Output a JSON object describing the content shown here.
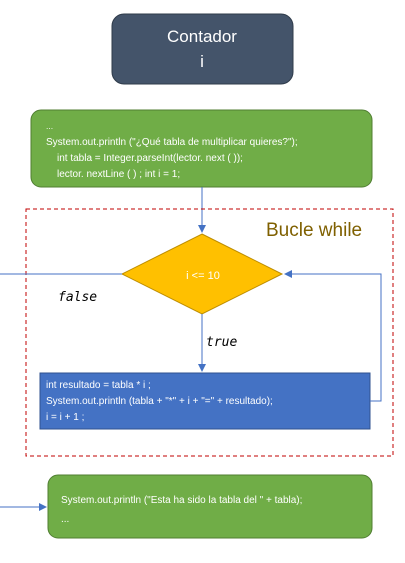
{
  "title_box": {
    "line1": "Contador",
    "line2": "i"
  },
  "init_box": {
    "lines": [
      "...",
      "System.out.println (\"¿Qué tabla de multiplicar quieres?\");",
      "int tabla = Integer.parseInt(lector.  next ( ));",
      "lector. nextLine ( ) ; int i = 1;"
    ]
  },
  "loop": {
    "label": "Bucle while",
    "condition": "i <= 10",
    "false_label": "false",
    "true_label": "true"
  },
  "body_box": {
    "lines": [
      "int resultado = tabla * i ;",
      "System.out.println (tabla + \"*\" + i + \"=\" + resultado);",
      "i = i +  1 ;"
    ]
  },
  "end_box": {
    "lines": [
      "System.out.println (\"Esta ha sido la tabla del \" + tabla);",
      "..."
    ]
  },
  "colors": {
    "title_fill": "#44546a",
    "green_fill": "#70ad47",
    "green_stroke": "#507e32",
    "blue_fill": "#4472c4",
    "blue_stroke": "#2f528f",
    "diamond_fill": "#ffc000",
    "diamond_stroke": "#bc8c00",
    "arrow": "#4472c4",
    "loop_border": "#c00000",
    "loop_label": "#7f6000"
  }
}
